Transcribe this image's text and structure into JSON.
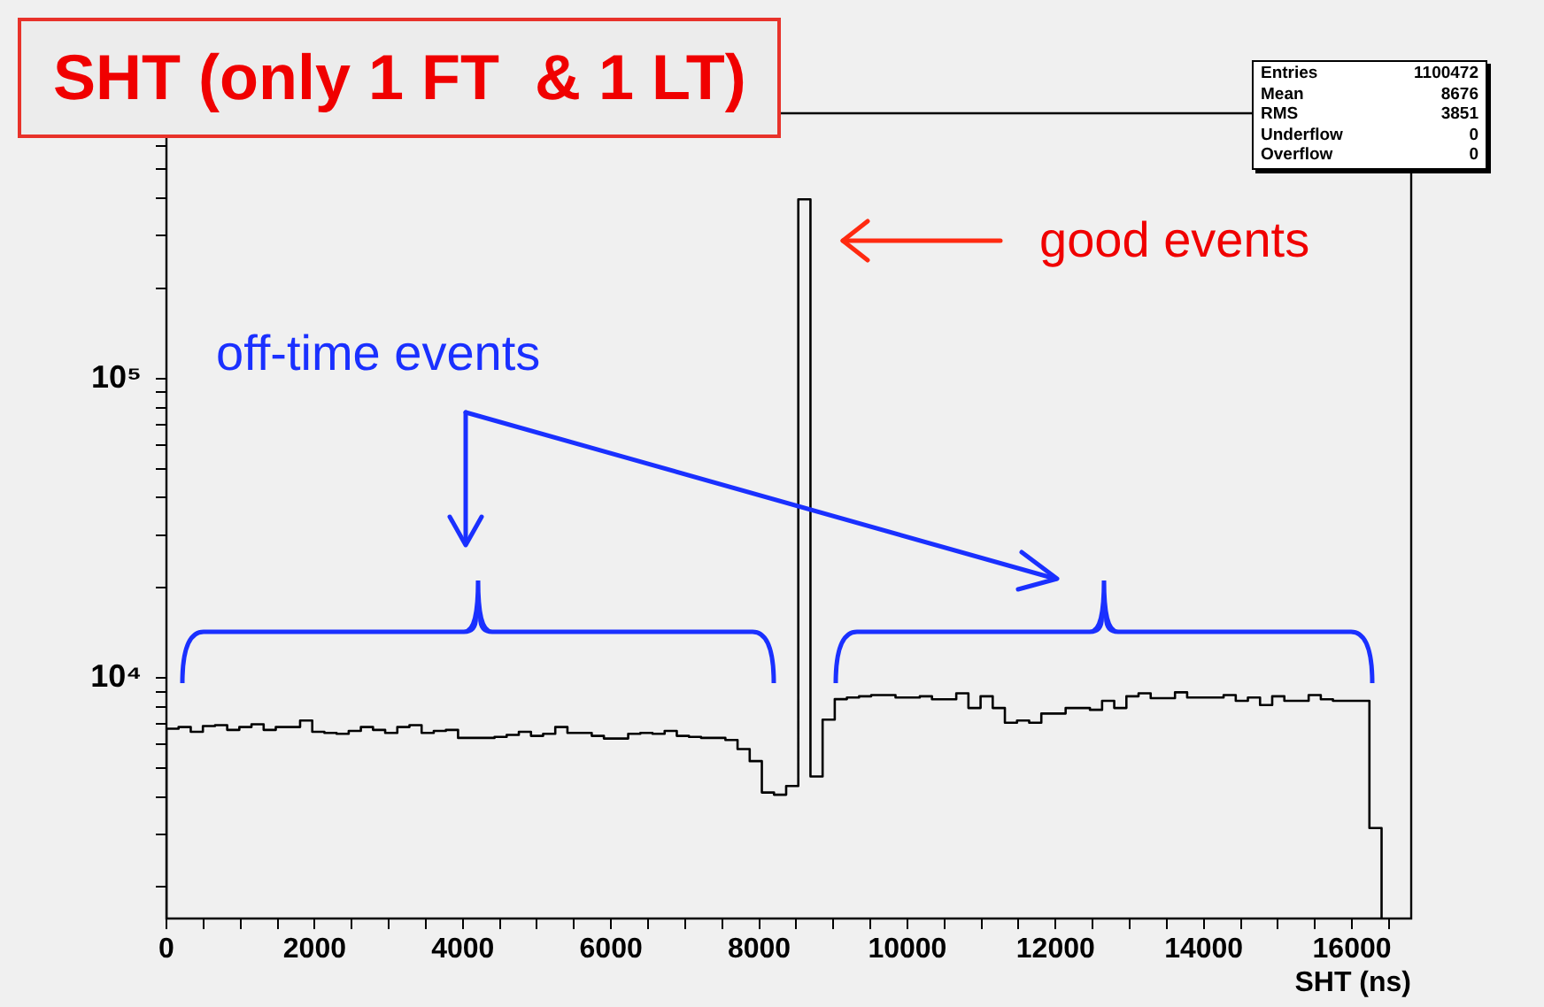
{
  "chart_data": {
    "type": "histogram",
    "title": "SHT (only 1 FT  & 1 LT)",
    "xlabel": "SHT (ns)",
    "bins": [
      0,
      164,
      328,
      492,
      656,
      820,
      984,
      1148,
      1312,
      1476,
      1640,
      1804,
      1968,
      2132,
      2296,
      2460,
      2624,
      2788,
      2952,
      3116,
      3280,
      3444,
      3608,
      3772,
      3936,
      4100,
      4264,
      4428,
      4592,
      4756,
      4920,
      5084,
      5248,
      5412,
      5576,
      5740,
      5904,
      6068,
      6232,
      6396,
      6560,
      6724,
      6888,
      7052,
      7216,
      7380,
      7544,
      7708,
      7872,
      8036,
      8200,
      8364,
      8528,
      8692,
      8856,
      9020,
      9184,
      9348,
      9512,
      9676,
      9840,
      10004,
      10168,
      10332,
      10496,
      10660,
      10824,
      10988,
      11152,
      11316,
      11480,
      11644,
      11808,
      11972,
      12136,
      12300,
      12464,
      12628,
      12792,
      12956,
      13120,
      13284,
      13448,
      13612,
      13776,
      13940,
      14104,
      14268,
      14432,
      14596,
      14760,
      14924,
      15088,
      15252,
      15416,
      15580,
      15744,
      15908,
      16072,
      16236,
      16400
    ],
    "values": [
      6760,
      6850,
      6600,
      6900,
      6950,
      6700,
      6850,
      7000,
      6700,
      6850,
      6850,
      7200,
      6600,
      6550,
      6500,
      6650,
      6850,
      6700,
      6550,
      6850,
      6950,
      6550,
      6650,
      6700,
      6300,
      6300,
      6300,
      6350,
      6450,
      6600,
      6400,
      6500,
      6850,
      6550,
      6550,
      6400,
      6270,
      6270,
      6500,
      6550,
      6500,
      6650,
      6400,
      6350,
      6300,
      6300,
      6200,
      5780,
      5270,
      4140,
      4070,
      4350,
      397000,
      4680,
      7250,
      8490,
      8600,
      8680,
      8760,
      8760,
      8600,
      8600,
      8680,
      8480,
      8480,
      8880,
      7930,
      8680,
      7930,
      7080,
      7200,
      7080,
      7600,
      7600,
      7930,
      7930,
      7820,
      8380,
      7930,
      8680,
      8880,
      8550,
      8550,
      8950,
      8600,
      8600,
      8600,
      8760,
      8380,
      8600,
      8110,
      8680,
      8380,
      8380,
      8760,
      8480,
      8380,
      8380,
      8380,
      3150
    ],
    "color": "#000000",
    "log": "y",
    "xlim": [
      0,
      16800
    ],
    "xticks": [
      0,
      {
        "value": 500,
        "label": null
      },
      {
        "value": 1000,
        "label": null
      },
      {
        "value": 1500,
        "label": null
      },
      2000,
      {
        "value": 2500,
        "label": null
      },
      {
        "value": 3000,
        "label": null
      },
      {
        "value": 3500,
        "label": null
      },
      4000,
      {
        "value": 4500,
        "label": null
      },
      {
        "value": 5000,
        "label": null
      },
      {
        "value": 5500,
        "label": null
      },
      6000,
      {
        "value": 6500,
        "label": null
      },
      {
        "value": 7000,
        "label": null
      },
      {
        "value": 7500,
        "label": null
      },
      8000,
      {
        "value": 8500,
        "label": null
      },
      {
        "value": 9000,
        "label": null
      },
      {
        "value": 9500,
        "label": null
      },
      10000,
      {
        "value": 10500,
        "label": null
      },
      {
        "value": 11000,
        "label": null
      },
      {
        "value": 11500,
        "label": null
      },
      12000,
      {
        "value": 12500,
        "label": null
      },
      {
        "value": 13000,
        "label": null
      },
      {
        "value": 13500,
        "label": null
      },
      14000,
      {
        "value": 14500,
        "label": null
      },
      {
        "value": 15000,
        "label": null
      },
      {
        "value": 15500,
        "label": null
      },
      16000,
      {
        "value": 16500,
        "label": null
      }
    ],
    "ylim": [
      1570,
      770000
    ],
    "yticks": [
      {
        "value": 2000,
        "label": null
      },
      {
        "value": 3000,
        "label": null
      },
      {
        "value": 4000,
        "label": null
      },
      {
        "value": 5000,
        "label": null
      },
      {
        "value": 6000,
        "label": null
      },
      {
        "value": 7000,
        "label": null
      },
      {
        "value": 8000,
        "label": null
      },
      {
        "value": 9000,
        "label": null
      },
      {
        "value": 10000,
        "label": "10⁴"
      },
      {
        "value": 20000,
        "label": null
      },
      {
        "value": 30000,
        "label": null
      },
      {
        "value": 40000,
        "label": null
      },
      {
        "value": 50000,
        "label": null
      },
      {
        "value": 60000,
        "label": null
      },
      {
        "value": 70000,
        "label": null
      },
      {
        "value": 80000,
        "label": null
      },
      {
        "value": 90000,
        "label": null
      },
      {
        "value": 100000,
        "label": "10⁵"
      },
      {
        "value": 200000,
        "label": null
      },
      {
        "value": 300000,
        "label": null
      },
      {
        "value": 400000,
        "label": null
      },
      {
        "value": 500000,
        "label": null
      },
      {
        "value": 600000,
        "label": null
      },
      {
        "value": 700000,
        "label": null
      }
    ],
    "annotations": [
      "Entries 1100472",
      "Mean 8676",
      "RMS 3851",
      "Underflow 0",
      "Overflow 0",
      "good events",
      "off-time events"
    ]
  }
}
